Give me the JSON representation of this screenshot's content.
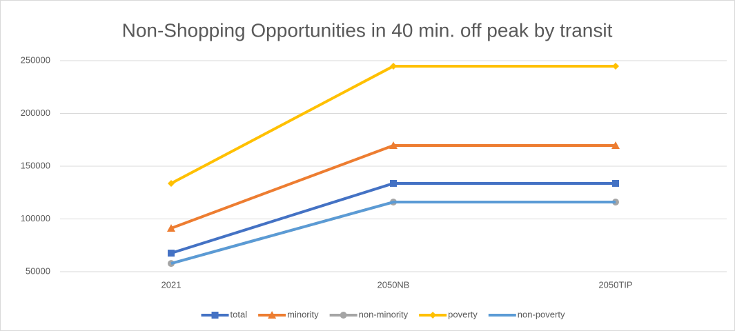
{
  "chart_data": {
    "type": "line",
    "title": "Non-Shopping Opportunities in 40 min. off peak by transit",
    "categories": [
      "2021",
      "2050NB",
      "2050TIP"
    ],
    "series": [
      {
        "name": "total",
        "color": "#4472c4",
        "marker": "square",
        "values": [
          67600,
          133700,
          133700
        ]
      },
      {
        "name": "minority",
        "color": "#ed7d31",
        "marker": "triangle",
        "values": [
          91200,
          169600,
          169600
        ]
      },
      {
        "name": "non-minority",
        "color": "#a5a5a5",
        "marker": "circle",
        "values": [
          57800,
          116000,
          116000
        ]
      },
      {
        "name": "poverty",
        "color": "#ffc000",
        "marker": "diamond",
        "values": [
          133700,
          244800,
          244800
        ]
      },
      {
        "name": "non-poverty",
        "color": "#5b9bd5",
        "marker": "none",
        "values": [
          57800,
          116000,
          116000
        ]
      }
    ],
    "ylim": [
      50000,
      250000
    ],
    "yticks": [
      50000,
      100000,
      150000,
      200000,
      250000
    ],
    "grid": true,
    "legend": "bottom"
  }
}
